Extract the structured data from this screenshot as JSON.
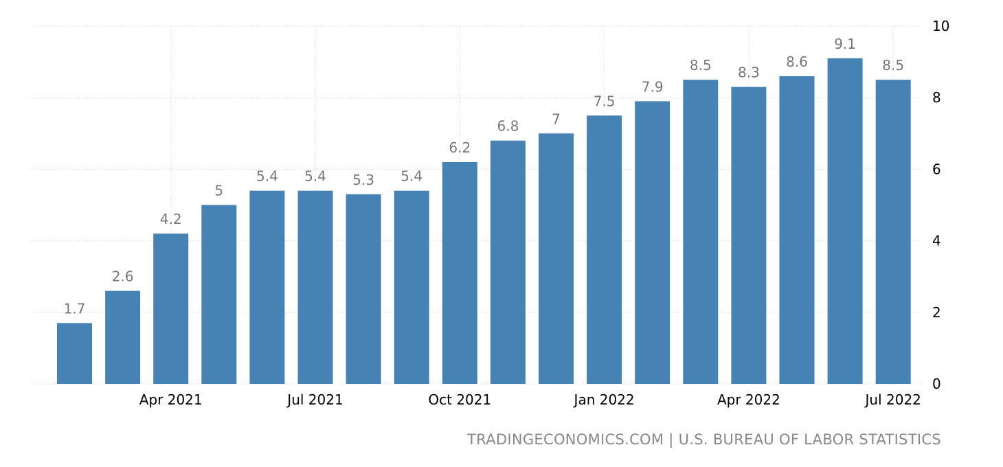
{
  "chart_data": {
    "type": "bar",
    "categories": [
      "Feb 2021",
      "Mar 2021",
      "Apr 2021",
      "May 2021",
      "Jun 2021",
      "Jul 2021",
      "Aug 2021",
      "Sep 2021",
      "Oct 2021",
      "Nov 2021",
      "Dec 2021",
      "Jan 2022",
      "Feb 2022",
      "Mar 2022",
      "Apr 2022",
      "May 2022",
      "Jun 2022",
      "Jul 2022"
    ],
    "values": [
      1.7,
      2.6,
      4.2,
      5,
      5.4,
      5.4,
      5.3,
      5.4,
      6.2,
      6.8,
      7,
      7.5,
      7.9,
      8.5,
      8.3,
      8.6,
      9.1,
      8.5
    ],
    "x_tick_labels": [
      "Apr 2021",
      "Jul 2021",
      "Oct 2021",
      "Jan 2022",
      "Apr 2022",
      "Jul 2022"
    ],
    "y_tick_labels": [
      "0",
      "2",
      "4",
      "6",
      "8",
      "10"
    ],
    "ylim": [
      0,
      10
    ],
    "y_axis_side": "right",
    "grid": true,
    "bar_color": "#4682b4",
    "label_color": "#777777"
  },
  "source_text": "TRADINGECONOMICS.COM | U.S. BUREAU OF LABOR STATISTICS"
}
